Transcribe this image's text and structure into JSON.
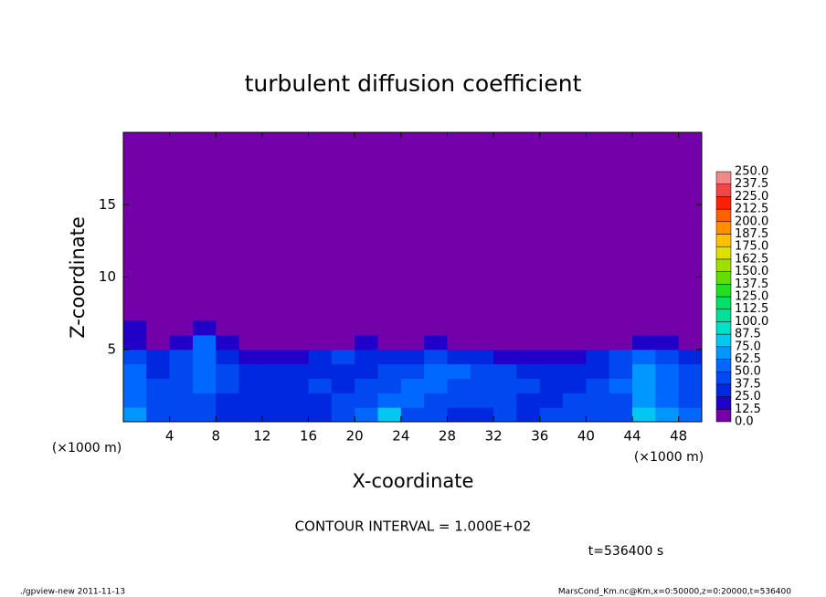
{
  "chart_data": {
    "type": "heatmap",
    "title": "turbulent diffusion coefficient",
    "x_label": "X-coordinate",
    "y_label": "Z-coordinate",
    "x_unit": "(×1000 m)",
    "y_unit": "(×1000 m)",
    "xlim": [
      0,
      50
    ],
    "ylim": [
      0,
      20
    ],
    "xticks": [
      4,
      8,
      12,
      16,
      20,
      24,
      28,
      32,
      36,
      40,
      44,
      48
    ],
    "yticks": [
      5,
      10,
      15
    ],
    "x": [
      1,
      3,
      5,
      7,
      9,
      11,
      13,
      15,
      17,
      19,
      21,
      23,
      25,
      27,
      29,
      31,
      33,
      35,
      37,
      39,
      41,
      43,
      45,
      47,
      49
    ],
    "y": [
      0.5,
      1.5,
      2.5,
      3.5,
      4.5,
      5.5,
      6.5
    ],
    "z": [
      [
        70,
        45,
        40,
        40,
        35,
        35,
        30,
        30,
        35,
        40,
        50,
        75,
        45,
        40,
        35,
        35,
        40,
        35,
        40,
        40,
        40,
        45,
        80,
        65,
        50
      ],
      [
        60,
        40,
        40,
        45,
        35,
        35,
        30,
        35,
        35,
        40,
        45,
        55,
        50,
        45,
        40,
        40,
        40,
        35,
        35,
        40,
        40,
        45,
        70,
        60,
        45
      ],
      [
        55,
        40,
        45,
        50,
        40,
        35,
        30,
        35,
        40,
        35,
        40,
        45,
        60,
        55,
        45,
        40,
        45,
        40,
        35,
        35,
        40,
        50,
        70,
        60,
        45
      ],
      [
        50,
        35,
        45,
        55,
        45,
        30,
        25,
        30,
        35,
        30,
        35,
        40,
        45,
        55,
        50,
        40,
        40,
        30,
        30,
        30,
        35,
        45,
        70,
        55,
        40
      ],
      [
        45,
        25,
        40,
        60,
        30,
        15,
        15,
        20,
        25,
        40,
        35,
        30,
        30,
        40,
        35,
        25,
        20,
        20,
        20,
        20,
        25,
        40,
        55,
        45,
        30
      ],
      [
        20,
        0,
        20,
        50,
        15,
        0,
        0,
        0,
        0,
        10,
        20,
        10,
        0,
        15,
        0,
        0,
        0,
        0,
        0,
        0,
        0,
        10,
        20,
        15,
        10
      ],
      [
        15,
        0,
        0,
        20,
        0,
        0,
        0,
        0,
        0,
        0,
        0,
        0,
        0,
        0,
        0,
        0,
        0,
        0,
        0,
        0,
        0,
        0,
        10,
        0,
        0
      ]
    ],
    "levels": [
      {
        "value": 0,
        "label": "0.0"
      },
      {
        "value": 12.5,
        "label": "12.5"
      },
      {
        "value": 25,
        "label": "25.0"
      },
      {
        "value": 37.5,
        "label": "37.5"
      },
      {
        "value": 50,
        "label": "50.0"
      },
      {
        "value": 62.5,
        "label": "62.5"
      },
      {
        "value": 75,
        "label": "75.0"
      },
      {
        "value": 87.5,
        "label": "87.5"
      },
      {
        "value": 100,
        "label": "100.0"
      },
      {
        "value": 112.5,
        "label": "112.5"
      },
      {
        "value": 125,
        "label": "125.0"
      },
      {
        "value": 137.5,
        "label": "137.5"
      },
      {
        "value": 150,
        "label": "150.0"
      },
      {
        "value": 162.5,
        "label": "162.5"
      },
      {
        "value": 175,
        "label": "175.0"
      },
      {
        "value": 187.5,
        "label": "187.5"
      },
      {
        "value": 200,
        "label": "200.0"
      },
      {
        "value": 212.5,
        "label": "212.5"
      },
      {
        "value": 225,
        "label": "225.0"
      },
      {
        "value": 237.5,
        "label": "237.5"
      },
      {
        "value": 250,
        "label": "250.0"
      }
    ],
    "colors": [
      "#7300a8",
      "#2000c8",
      "#0028e0",
      "#0048f0",
      "#0068ff",
      "#0098ff",
      "#00c8f0",
      "#00e0c8",
      "#00e098",
      "#00e068",
      "#20e020",
      "#60e000",
      "#a0e000",
      "#e0e000",
      "#ffc000",
      "#ff9000",
      "#ff6000",
      "#ff2000",
      "#f04848",
      "#f08888"
    ],
    "annotation": "CONTOUR INTERVAL = 1.000E+02",
    "time_label": "t=536400 s",
    "footer_left": "./gpview-new   2011-11-13",
    "footer_right": "MarsCond_Km.nc@Km,x=0:50000,z=0:20000,t=536400"
  }
}
